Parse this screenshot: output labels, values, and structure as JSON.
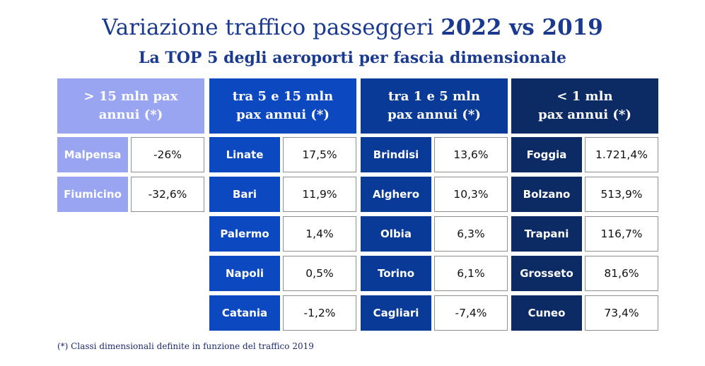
{
  "title_main": "Variazione traffico passeggeri ",
  "title_years": "2022 vs 2019",
  "subtitle": "La TOP 5 degli aeroporti per fascia dimensionale",
  "footnote": "(*) Classi dimensionali definite in funzione del traffico 2019",
  "colors": {
    "title": "#1a3a8f",
    "g1": "#9aa5f2",
    "g2": "#0c48c0",
    "g3": "#0a3a97",
    "g4": "#0c2a64"
  },
  "chart_data": {
    "type": "table",
    "groups": [
      {
        "header_line1": "> 15 mln pax",
        "header_line2": "annui (*)",
        "rows": [
          {
            "airport": "Malpensa",
            "value": "-26%"
          },
          {
            "airport": "Fiumicino",
            "value": "-32,6%"
          }
        ]
      },
      {
        "header_line1": "tra 5 e 15 mln",
        "header_line2": "pax annui (*)",
        "rows": [
          {
            "airport": "Linate",
            "value": "17,5%"
          },
          {
            "airport": "Bari",
            "value": "11,9%"
          },
          {
            "airport": "Palermo",
            "value": "1,4%"
          },
          {
            "airport": "Napoli",
            "value": "0,5%"
          },
          {
            "airport": "Catania",
            "value": "-1,2%"
          }
        ]
      },
      {
        "header_line1": "tra 1 e 5 mln",
        "header_line2": "pax annui (*)",
        "rows": [
          {
            "airport": "Brindisi",
            "value": "13,6%"
          },
          {
            "airport": "Alghero",
            "value": "10,3%"
          },
          {
            "airport": "Olbia",
            "value": "6,3%"
          },
          {
            "airport": "Torino",
            "value": "6,1%"
          },
          {
            "airport": "Cagliari",
            "value": "-7,4%"
          }
        ]
      },
      {
        "header_line1": "< 1 mln",
        "header_line2": "pax annui (*)",
        "rows": [
          {
            "airport": "Foggia",
            "value": "1.721,4%"
          },
          {
            "airport": "Bolzano",
            "value": "513,9%"
          },
          {
            "airport": "Trapani",
            "value": "116,7%"
          },
          {
            "airport": "Grosseto",
            "value": "81,6%"
          },
          {
            "airport": "Cuneo",
            "value": "73,4%"
          }
        ]
      }
    ]
  }
}
